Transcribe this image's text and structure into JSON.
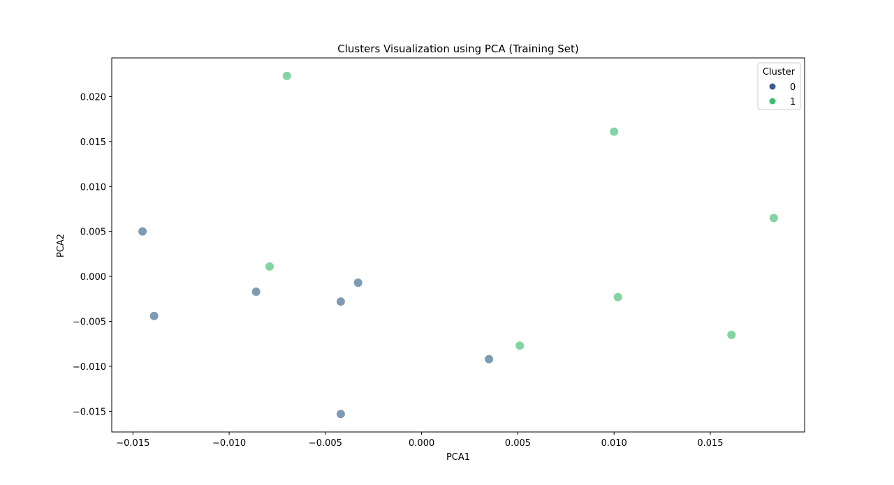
{
  "chart_data": {
    "type": "scatter",
    "title": "Clusters Visualization using PCA (Training Set)",
    "xlabel": "PCA1",
    "ylabel": "PCA2",
    "xlim": [
      -0.0161,
      0.0199
    ],
    "ylim": [
      -0.0173,
      0.0243
    ],
    "xticks": [
      -0.015,
      -0.01,
      -0.005,
      0.0,
      0.005,
      0.01,
      0.015
    ],
    "xtick_labels": [
      "−0.015",
      "−0.010",
      "−0.005",
      "0.000",
      "0.005",
      "0.010",
      "0.015"
    ],
    "yticks": [
      -0.015,
      -0.01,
      -0.005,
      0.0,
      0.005,
      0.01,
      0.015,
      0.02
    ],
    "ytick_labels": [
      "−0.015",
      "−0.010",
      "−0.005",
      "0.000",
      "0.005",
      "0.010",
      "0.015",
      "0.020"
    ],
    "grid": false,
    "legend": {
      "title": "Cluster",
      "placement": "top-right"
    },
    "series": [
      {
        "name": "0",
        "color": "#3b5e8c",
        "point_color": "#7f9bb4",
        "points": [
          {
            "x": -0.0145,
            "y": 0.005
          },
          {
            "x": -0.0139,
            "y": -0.0044
          },
          {
            "x": -0.0086,
            "y": -0.0017
          },
          {
            "x": -0.0042,
            "y": -0.0028
          },
          {
            "x": -0.0033,
            "y": -0.0007
          },
          {
            "x": 0.0035,
            "y": -0.0092
          },
          {
            "x": -0.0042,
            "y": -0.0153
          }
        ]
      },
      {
        "name": "1",
        "color": "#3fbc73",
        "point_color": "#83d4a2",
        "points": [
          {
            "x": -0.007,
            "y": 0.0223
          },
          {
            "x": -0.0079,
            "y": 0.0011
          },
          {
            "x": 0.01,
            "y": 0.0161
          },
          {
            "x": 0.0183,
            "y": 0.0065
          },
          {
            "x": 0.0102,
            "y": -0.0023
          },
          {
            "x": 0.0051,
            "y": -0.0077
          },
          {
            "x": 0.0161,
            "y": -0.0065
          }
        ]
      }
    ]
  }
}
